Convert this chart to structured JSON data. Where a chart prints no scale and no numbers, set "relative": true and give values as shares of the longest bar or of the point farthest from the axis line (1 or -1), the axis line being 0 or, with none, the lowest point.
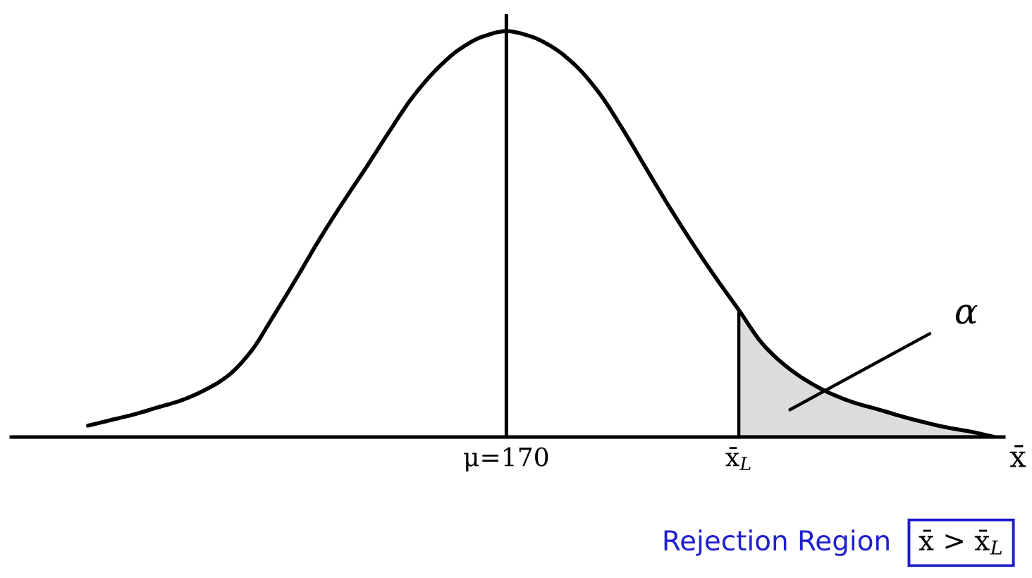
{
  "chart_data": {
    "type": "line",
    "relative": true,
    "tick_labels": "x",
    "xlabel": "x̄",
    "categories": [
      null,
      null,
      null,
      null,
      null,
      null,
      null,
      null,
      null,
      null,
      null,
      null,
      null,
      null,
      null,
      null,
      null,
      null,
      "μ=170",
      null,
      null,
      null,
      null,
      null,
      null,
      null,
      null,
      null,
      "x̄$_{L}$",
      null,
      null,
      null,
      null,
      null,
      null,
      null,
      null,
      null,
      null,
      null
    ],
    "series": [
      {
        "color": "#000000",
        "values": [
          0.028,
          0.042,
          0.056,
          0.073,
          0.09,
          0.115,
          0.15,
          0.21,
          0.3,
          0.394,
          0.491,
          0.581,
          0.667,
          0.756,
          0.84,
          0.906,
          0.956,
          0.987,
          1.0,
          0.988,
          0.96,
          0.914,
          0.847,
          0.759,
          0.663,
          0.568,
          0.478,
          0.393,
          0.313,
          0.231,
          0.176,
          0.136,
          0.106,
          0.084,
          0.068,
          0.051,
          0.036,
          0.023,
          0.013,
          0
        ]
      },
      {
        "type": "area",
        "color": "#dcdcdc",
        "values": [
          null,
          null,
          null,
          null,
          null,
          null,
          null,
          null,
          null,
          null,
          null,
          null,
          null,
          null,
          null,
          null,
          null,
          null,
          null,
          null,
          null,
          null,
          null,
          null,
          null,
          null,
          null,
          null,
          0.313,
          0.231,
          0.176,
          0.136,
          0.106,
          0.084,
          0.068,
          0.051,
          0.036,
          0.023,
          0.013,
          0
        ]
      }
    ],
    "ref_lines": [
      {
        "axis": "x",
        "value": "μ=170",
        "color": "#000000"
      }
    ],
    "annotations": [
      "α",
      "Rejection Region",
      "x̄ > x̄$_{L}$"
    ]
  }
}
